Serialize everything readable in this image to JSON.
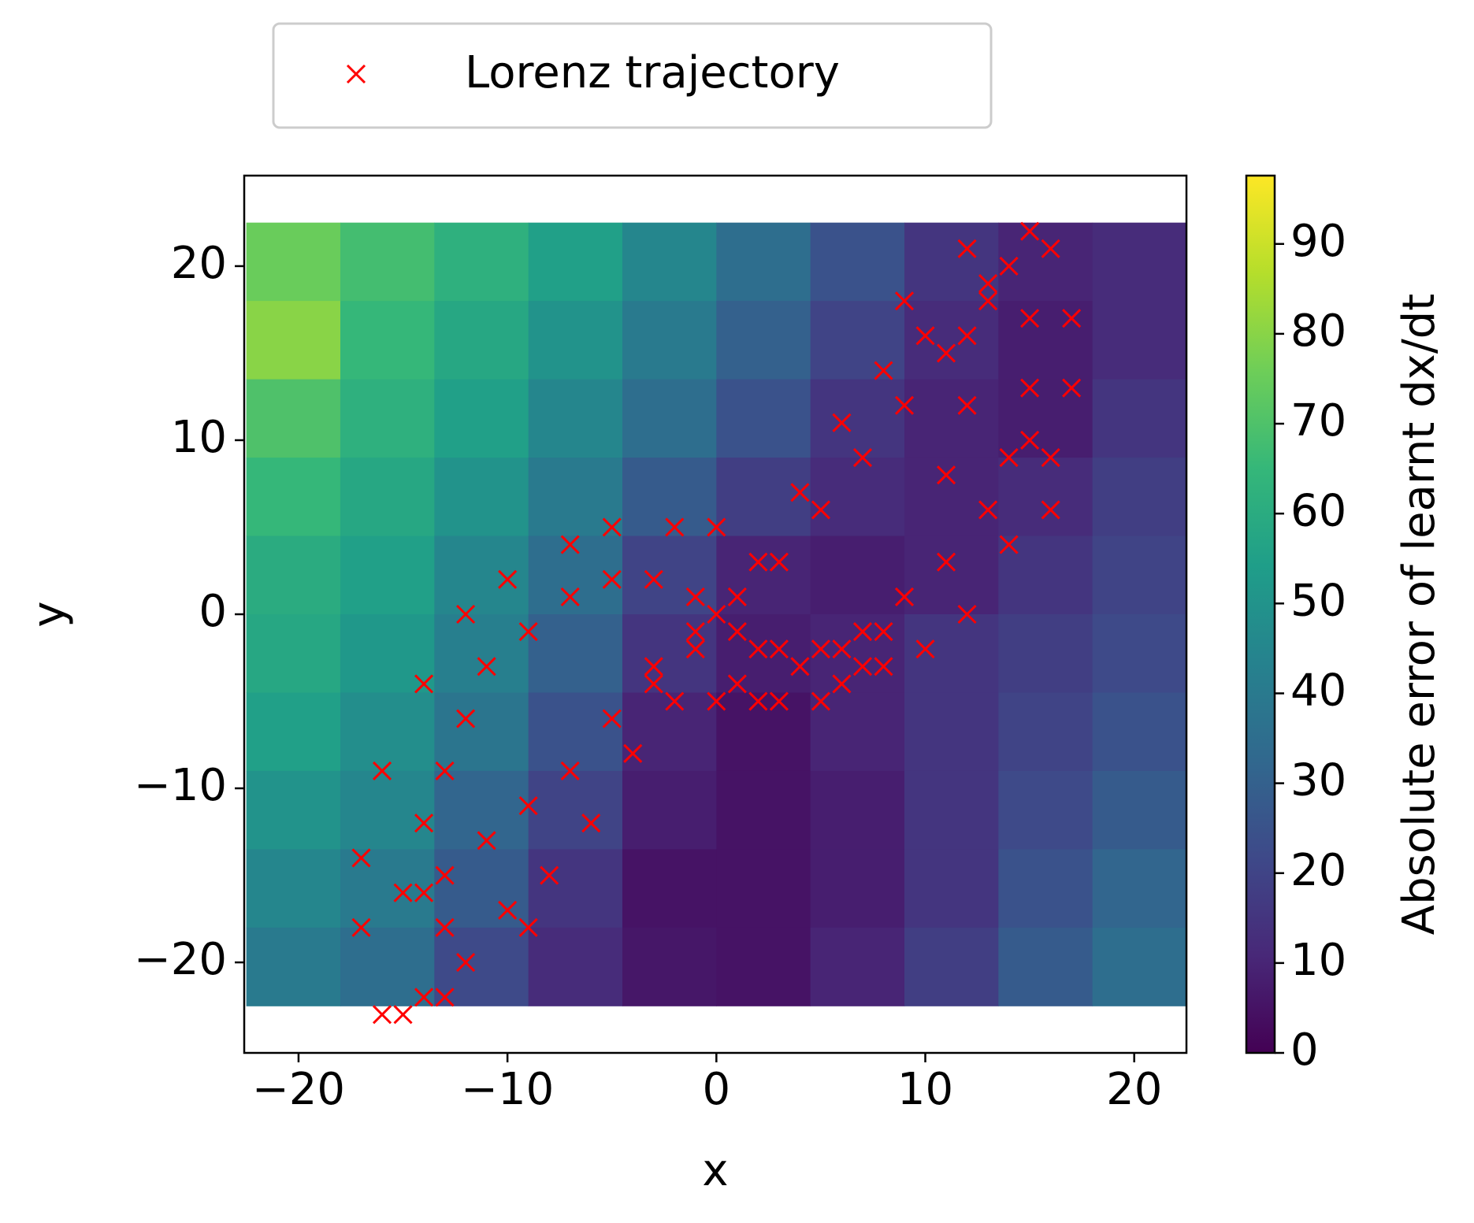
{
  "chart_data": {
    "type": "scatter",
    "xlabel": "x",
    "ylabel": "y",
    "xlim": [
      -22.6,
      22.5
    ],
    "ylim": [
      -25.2,
      25.2
    ],
    "xticks": [
      {
        "value": -20,
        "label": "−20"
      },
      {
        "value": -10,
        "label": "−10"
      },
      0,
      10,
      20
    ],
    "yticks": [
      {
        "value": -20,
        "label": "−20"
      },
      {
        "value": -10,
        "label": "−10"
      },
      0,
      10,
      20
    ],
    "legend_position": "top",
    "series": [
      {
        "name": "Lorenz trajectory",
        "color": "#ff0000",
        "marker": "x",
        "x": [
          -15,
          -13,
          -11,
          -9,
          -7,
          -5,
          -3,
          -1,
          0,
          1,
          3,
          5,
          7,
          9,
          11,
          13,
          14,
          15,
          -13,
          -14,
          -14,
          -13,
          -12,
          -11,
          -9,
          -7,
          -5,
          -3,
          -1,
          -10,
          -8,
          -6,
          -4,
          -2,
          -17,
          -17,
          -16,
          -14,
          -12,
          -10,
          -7,
          -5,
          -2,
          0,
          -12,
          -9,
          13,
          15,
          15,
          14,
          13,
          11,
          9,
          7,
          5,
          3,
          1,
          10,
          8,
          6,
          4,
          2,
          12,
          12,
          11,
          17,
          17,
          16,
          14,
          12,
          10,
          7,
          5,
          2,
          0,
          12,
          9,
          16,
          16,
          15,
          -1,
          2,
          4,
          6,
          8,
          -3,
          1,
          3,
          6,
          8,
          -16,
          -15,
          -14,
          -13
        ],
        "y": [
          -16,
          -15,
          -13,
          -11,
          -9,
          -6,
          -3,
          -1,
          0,
          1,
          3,
          6,
          9,
          12,
          15,
          18,
          20,
          22,
          -18,
          -16,
          -12,
          -9,
          -6,
          -3,
          -1,
          1,
          2,
          2,
          1,
          -17,
          -15,
          -12,
          -8,
          -5,
          -18,
          -14,
          -9,
          -4,
          0,
          2,
          4,
          5,
          5,
          5,
          -20,
          -18,
          19,
          17,
          13,
          9,
          6,
          3,
          1,
          -1,
          -2,
          -2,
          -1,
          16,
          14,
          11,
          7,
          3,
          16,
          12,
          8,
          17,
          13,
          9,
          4,
          0,
          -2,
          -3,
          -5,
          -5,
          -5,
          21,
          18,
          21,
          6,
          10,
          -2,
          -2,
          -3,
          -2,
          -1,
          -4,
          -4,
          -5,
          -4,
          -3,
          -23,
          -23,
          -22,
          -22
        ]
      }
    ],
    "heatmap": {
      "x": [
        -20.25,
        -15.75,
        -11.25,
        -6.75,
        -2.25,
        2.25,
        6.75,
        11.25,
        15.75,
        20.25
      ],
      "y": [
        20.25,
        15.75,
        11.25,
        6.75,
        2.25,
        -2.25,
        -6.75,
        -11.25,
        -15.75,
        -20.25
      ],
      "z": [
        [
          75,
          68,
          62,
          55,
          45,
          35,
          25,
          15,
          10,
          12
        ],
        [
          80,
          65,
          58,
          50,
          40,
          30,
          20,
          12,
          8,
          12
        ],
        [
          70,
          62,
          55,
          45,
          35,
          25,
          15,
          10,
          8,
          15
        ],
        [
          65,
          58,
          50,
          40,
          28,
          18,
          12,
          10,
          12,
          18
        ],
        [
          60,
          55,
          45,
          35,
          20,
          10,
          8,
          10,
          15,
          20
        ],
        [
          58,
          52,
          42,
          30,
          15,
          8,
          10,
          15,
          18,
          22
        ],
        [
          55,
          48,
          38,
          25,
          10,
          5,
          10,
          15,
          20,
          25
        ],
        [
          50,
          45,
          32,
          20,
          8,
          5,
          8,
          15,
          22,
          28
        ],
        [
          45,
          40,
          28,
          15,
          5,
          5,
          8,
          15,
          25,
          32
        ],
        [
          40,
          35,
          22,
          12,
          6,
          5,
          10,
          18,
          28,
          35
        ]
      ]
    },
    "colorbar": {
      "label": "Absolute error of learnt dx/dt",
      "lim": [
        0,
        97.6
      ],
      "ticks": [
        0,
        10,
        20,
        30,
        40,
        50,
        60,
        70,
        80,
        90
      ],
      "colormap": [
        "#440154",
        "#482878",
        "#3e4989",
        "#31688e",
        "#26828e",
        "#1f9e89",
        "#35b779",
        "#6ece58",
        "#b5de2b",
        "#fde725"
      ]
    }
  }
}
